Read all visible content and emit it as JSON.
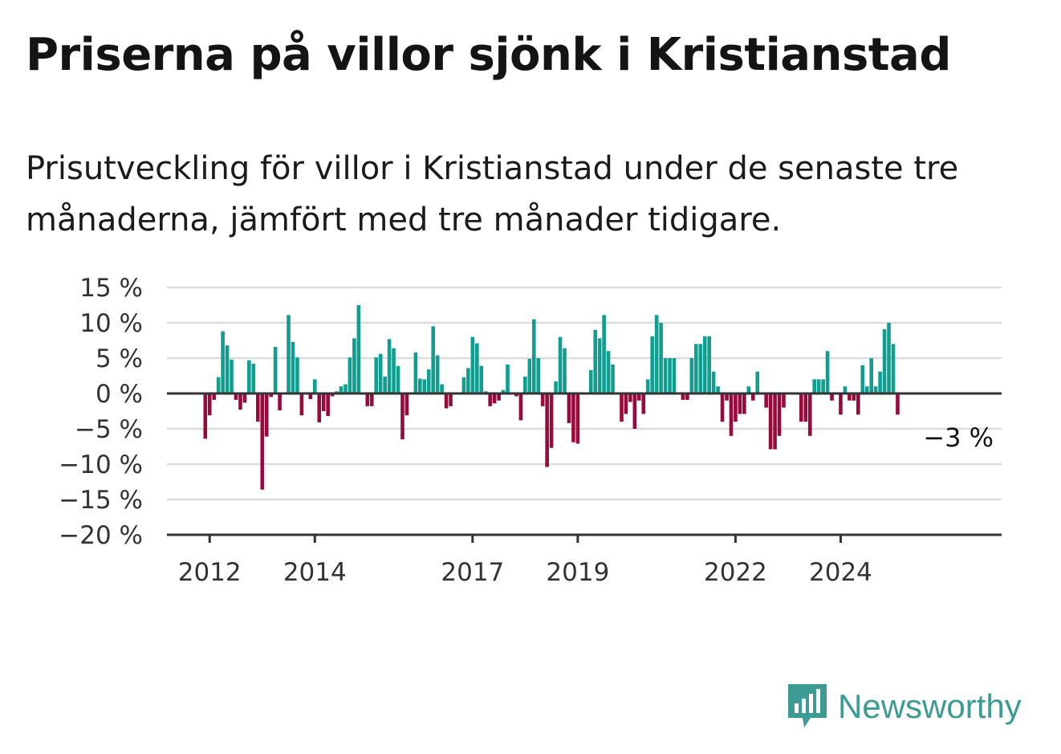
{
  "title": "Priserna på villor sjönk i Kristianstad",
  "subtitle": "Prisutveckling för villor i Kristianstad under de senaste tre månaderna, jämfört med tre månader tidigare.",
  "brand": "Newsworthy",
  "colors": {
    "positive": "#0f9e90",
    "negative": "#990a3c",
    "grid": "#dcdcdc",
    "axis": "#333333",
    "brand": "#3c9c94"
  },
  "chart_data": {
    "type": "bar",
    "start": "2011-12",
    "ylim": [
      -20,
      15
    ],
    "y_ticks": [
      15,
      10,
      5,
      0,
      -5,
      -10,
      -15,
      -20
    ],
    "y_tick_labels": [
      "15 %",
      "10 %",
      "5 %",
      "0 %",
      "−5 %",
      "−10 %",
      "−15 %",
      "−20 %"
    ],
    "x_ticks": [
      "2012",
      "2014",
      "2017",
      "2019",
      "2022",
      "2024"
    ],
    "grid": true,
    "annotation": "−3 %",
    "values": [
      -6.4,
      -3.1,
      -0.9,
      2.3,
      8.8,
      6.8,
      4.8,
      -0.9,
      -2.3,
      -1.3,
      4.7,
      4.2,
      -4,
      -13.6,
      -6.1,
      -0.5,
      6.6,
      -2.4,
      0,
      11.1,
      7.3,
      5.1,
      -3.1,
      0,
      -0.8,
      2,
      -4.1,
      -2.5,
      -3.2,
      -0.4,
      0.3,
      1,
      1.3,
      5.1,
      7.8,
      12.5,
      0,
      -1.8,
      -1.8,
      5.1,
      5.6,
      2.4,
      7.7,
      6.4,
      3.9,
      -6.5,
      -3.1,
      0,
      5.8,
      2.1,
      2,
      3.4,
      9.5,
      5.4,
      1.3,
      -2.1,
      -1.8,
      0,
      0,
      2.3,
      3.6,
      8,
      7.1,
      3.9,
      0.3,
      -1.8,
      -1.4,
      -1,
      0.5,
      4.1,
      0,
      -0.4,
      -3.8,
      2.4,
      4.9,
      10.5,
      5,
      -1.8,
      -10.4,
      -7.7,
      1.7,
      8,
      6.4,
      -4.2,
      -6.9,
      -7.1,
      0,
      0,
      3.3,
      9,
      7.8,
      11.1,
      6,
      4.1,
      0,
      -4,
      -2.9,
      -1.2,
      -5,
      -1,
      -2.9,
      2,
      8.1,
      11.1,
      10,
      5,
      5,
      5,
      0,
      -0.9,
      -0.9,
      5,
      7,
      7,
      8.1,
      8.1,
      3.1,
      1,
      -4,
      -1,
      -6,
      -4,
      -2.9,
      -2.9,
      1,
      -1,
      3.1,
      0,
      -2,
      -7.9,
      -7.9,
      -6,
      -2,
      0,
      0,
      0,
      -4,
      -4,
      -6,
      2,
      2,
      2,
      6,
      -1,
      0,
      -3,
      1,
      -1,
      -1,
      -3,
      4,
      1,
      5,
      1,
      3.1,
      9.1,
      10,
      7,
      -3
    ]
  }
}
